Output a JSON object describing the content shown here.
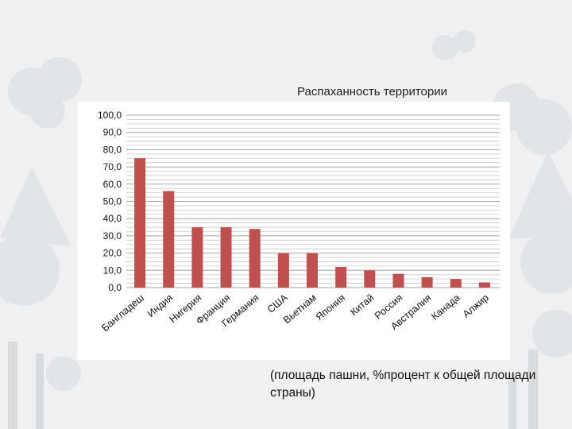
{
  "slide": {
    "title": "Распаханность территории",
    "caption": "(площадь пашни, %процент к общей площади страны)"
  },
  "colors": {
    "bar": "#c0504d",
    "grid": "#a6a6a6",
    "background": "#eef0f1",
    "decor": "#e1e4e6"
  },
  "chart_data": {
    "type": "bar",
    "title": "",
    "xlabel": "",
    "ylabel": "",
    "categories": [
      "Бангладеш",
      "Индия",
      "Нигерия",
      "Франция",
      "Германия",
      "США",
      "Вьетнам",
      "Япония",
      "Китай",
      "Россия",
      "Австралия",
      "Канада",
      "Алжир"
    ],
    "values": [
      75,
      56,
      35,
      35,
      34,
      20,
      20,
      12,
      10,
      8,
      6,
      5,
      3
    ],
    "ylim": [
      0,
      100
    ],
    "yticks": [
      "0,0",
      "10,0",
      "20,0",
      "30,0",
      "40,0",
      "50,0",
      "60,0",
      "70,0",
      "80,0",
      "90,0",
      "100,0"
    ],
    "grid": true,
    "legend": "none"
  }
}
